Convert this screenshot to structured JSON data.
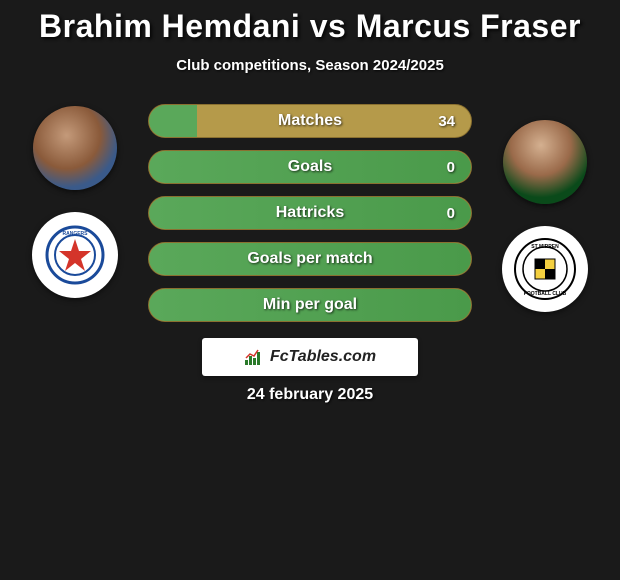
{
  "title": "Brahim Hemdani vs Marcus Fraser",
  "subtitle": "Club competitions, Season 2024/2025",
  "date": "24 february 2025",
  "brand": "FcTables.com",
  "colors": {
    "title": "#ffffff",
    "pill_bg": "#b59a4a",
    "pill_border": "#8a7030",
    "pill_fill": "#5aa85a",
    "pill_fill2": "#4a9a4a"
  },
  "stats": [
    {
      "label": "Matches",
      "value": "34",
      "left_pct": 15,
      "fill_mode": "split"
    },
    {
      "label": "Goals",
      "value": "0",
      "left_pct": 100,
      "fill_mode": "full"
    },
    {
      "label": "Hattricks",
      "value": "0",
      "left_pct": 100,
      "fill_mode": "full"
    },
    {
      "label": "Goals per match",
      "value": "",
      "left_pct": 100,
      "fill_mode": "full"
    },
    {
      "label": "Min per goal",
      "value": "",
      "left_pct": 100,
      "fill_mode": "full"
    }
  ],
  "player_left": {
    "name": "Brahim Hemdani",
    "club": "Rangers"
  },
  "player_right": {
    "name": "Marcus Fraser",
    "club": "St Mirren"
  }
}
